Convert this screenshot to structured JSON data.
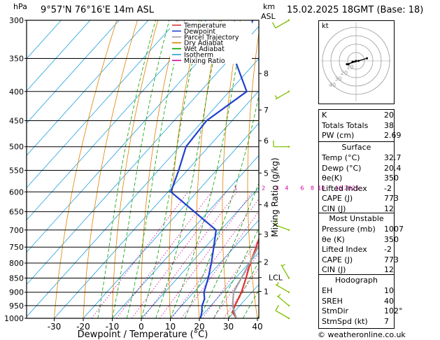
{
  "header": {
    "hpa_label": "hPa",
    "location": "9°57'N  76°16'E  14m  ASL",
    "km_label": "km",
    "asl_label": "ASL",
    "datetime": "15.02.2025  18GMT  (Base: 18)"
  },
  "footer": {
    "copyright": "© weatheronline.co.uk"
  },
  "legend": [
    {
      "label": "Temperature",
      "color": "#e03030"
    },
    {
      "label": "Dewpoint",
      "color": "#2040d0"
    },
    {
      "label": "Parcel Trajectory",
      "color": "#a0a0a0"
    },
    {
      "label": "Dry Adiabat",
      "color": "#e08000"
    },
    {
      "label": "Wet Adiabat",
      "color": "#00a000"
    },
    {
      "label": "Isotherm",
      "color": "#20a0e0"
    },
    {
      "label": "Mixing Ratio",
      "color": "#d000a0"
    }
  ],
  "colors": {
    "temperature": "#e03030",
    "dewpoint": "#2040d0",
    "parcel": "#a0a0a0",
    "dry_adiabat": "#e08000",
    "wet_adiabat": "#00a000",
    "isotherm": "#20a0e0",
    "mixing_ratio": "#d000a0",
    "wind_barb": "#80c000"
  },
  "chart_data": {
    "type": "line",
    "xlabel": "Dewpoint / Temperature (°C)",
    "ylabel_right": "Mixing Ratio (g/kg)",
    "x_ticks": [
      -30,
      -20,
      -10,
      0,
      10,
      20,
      30,
      40
    ],
    "pressure_levels": [
      300,
      350,
      400,
      450,
      500,
      550,
      600,
      650,
      700,
      750,
      800,
      850,
      900,
      950,
      1000
    ],
    "km_ticks": [
      {
        "label": "8",
        "p": 372
      },
      {
        "label": "7",
        "p": 431
      },
      {
        "label": "6",
        "p": 488
      },
      {
        "label": "5",
        "p": 556
      },
      {
        "label": "4",
        "p": 632
      },
      {
        "label": "3",
        "p": 712
      },
      {
        "label": "2",
        "p": 796
      },
      {
        "label": "LCL",
        "p": 848
      },
      {
        "label": "1",
        "p": 897
      }
    ],
    "mixing_ratio_labels": [
      {
        "label": "1",
        "t": -6.7
      },
      {
        "label": "2",
        "t": 2.9
      },
      {
        "label": "3",
        "t": 7.6
      },
      {
        "label": "4",
        "t": 10.9
      },
      {
        "label": "6",
        "t": 16.2
      },
      {
        "label": "8",
        "t": 19.7
      },
      {
        "label": "10",
        "t": 22.8
      },
      {
        "label": "16",
        "t": 28.8
      },
      {
        "label": "20",
        "t": 31.9
      },
      {
        "label": "25",
        "t": 34.6
      }
    ],
    "series": [
      {
        "name": "Temperature",
        "points": [
          [
            1000,
            32.7
          ],
          [
            975,
            29.5
          ],
          [
            950,
            28.3
          ],
          [
            925,
            27.4
          ],
          [
            900,
            26.4
          ],
          [
            850,
            23.6
          ],
          [
            800,
            20.4
          ],
          [
            750,
            17.5
          ],
          [
            700,
            14.2
          ],
          [
            650,
            11.4
          ],
          [
            600,
            7.8
          ],
          [
            550,
            3.3
          ],
          [
            500,
            -1.6
          ],
          [
            450,
            -6.6
          ],
          [
            400,
            -12.9
          ],
          [
            350,
            -20.5
          ],
          [
            300,
            -29.0
          ]
        ]
      },
      {
        "name": "Dewpoint",
        "points": [
          [
            1000,
            20.4
          ],
          [
            975,
            18.9
          ],
          [
            950,
            17.0
          ],
          [
            925,
            15.8
          ],
          [
            900,
            13.5
          ],
          [
            850,
            10.6
          ],
          [
            800,
            7.0
          ],
          [
            750,
            2.9
          ],
          [
            700,
            -1.6
          ],
          [
            650,
            -14.8
          ],
          [
            600,
            -29.0
          ],
          [
            550,
            -33.0
          ],
          [
            500,
            -37.8
          ],
          [
            450,
            -38.8
          ],
          [
            400,
            -34.0
          ],
          [
            350,
            -48.5
          ],
          [
            300,
            -54.0
          ]
        ]
      },
      {
        "name": "Parcel Trajectory",
        "points": [
          [
            1000,
            32.7
          ],
          [
            950,
            27.5
          ],
          [
            900,
            23.7
          ],
          [
            848,
            21.9
          ],
          [
            800,
            20.2
          ],
          [
            750,
            18.2
          ],
          [
            700,
            15.9
          ],
          [
            650,
            13.4
          ],
          [
            600,
            10.4
          ],
          [
            550,
            6.9
          ],
          [
            500,
            2.6
          ],
          [
            450,
            -2.3
          ],
          [
            400,
            -8.8
          ],
          [
            350,
            -16.2
          ],
          [
            300,
            -25.5
          ]
        ]
      }
    ],
    "hodograph": {
      "label": "kt",
      "ring_labels": [
        "10",
        "20",
        "30",
        "40"
      ],
      "points": [
        [
          0,
          0
        ],
        [
          -4,
          -1
        ],
        [
          -9,
          -4
        ],
        [
          -11,
          -4
        ],
        [
          3,
          0
        ],
        [
          13,
          3
        ]
      ]
    },
    "wind_barbs": [
      {
        "p": 1000,
        "dir": 300,
        "speed": 10
      },
      {
        "p": 950,
        "dir": 310,
        "speed": 5
      },
      {
        "p": 900,
        "dir": 300,
        "speed": 5
      },
      {
        "p": 850,
        "dir": 330,
        "speed": 5
      },
      {
        "p": 700,
        "dir": 290,
        "speed": 10
      },
      {
        "p": 500,
        "dir": 270,
        "speed": 10
      },
      {
        "p": 400,
        "dir": 240,
        "speed": 5
      },
      {
        "p": 300,
        "dir": 240,
        "speed": 10
      }
    ]
  },
  "indices": {
    "basic": [
      {
        "k": "K",
        "v": "20"
      },
      {
        "k": "Totals Totals",
        "v": "38"
      },
      {
        "k": "PW (cm)",
        "v": "2.69"
      }
    ],
    "surface_title": "Surface",
    "surface": [
      {
        "k": "Temp (°C)",
        "v": "32.7"
      },
      {
        "k": "Dewp (°C)",
        "v": "20.4"
      },
      {
        "k": "θe(K)",
        "v": "350"
      },
      {
        "k": "Lifted Index",
        "v": "-2"
      },
      {
        "k": "CAPE (J)",
        "v": "773"
      },
      {
        "k": "CIN (J)",
        "v": "12"
      }
    ],
    "unstable_title": "Most Unstable",
    "unstable": [
      {
        "k": "Pressure (mb)",
        "v": "1007"
      },
      {
        "k": "θe (K)",
        "v": "350"
      },
      {
        "k": "Lifted Index",
        "v": "-2"
      },
      {
        "k": "CAPE (J)",
        "v": "773"
      },
      {
        "k": "CIN (J)",
        "v": "12"
      }
    ],
    "hodograph_title": "Hodograph",
    "hodograph": [
      {
        "k": "EH",
        "v": "10"
      },
      {
        "k": "SREH",
        "v": "40"
      },
      {
        "k": "StmDir",
        "v": "102°"
      },
      {
        "k": "StmSpd (kt)",
        "v": "7"
      }
    ]
  }
}
